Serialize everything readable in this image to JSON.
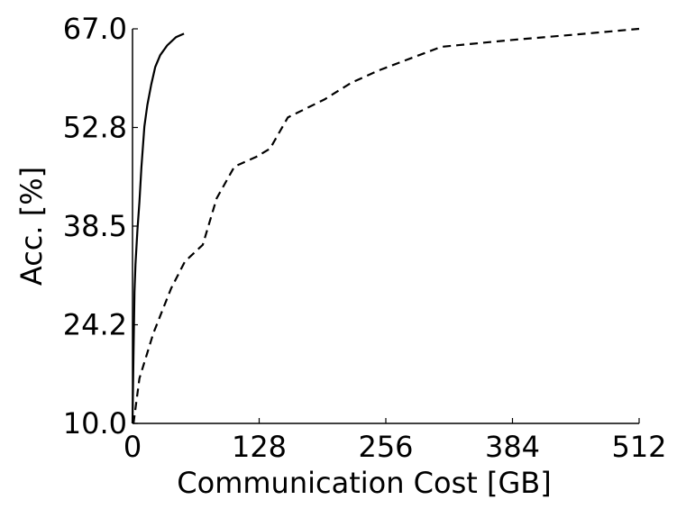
{
  "chart_data": {
    "type": "line",
    "xlabel": "Communication Cost [GB]",
    "ylabel": "Acc. [%]",
    "xlim": [
      0,
      512
    ],
    "xticks": [
      0,
      128,
      256,
      384,
      512
    ],
    "ylim": [
      10,
      67
    ],
    "yticks": [
      {
        "value": 10,
        "label": "10.0"
      },
      {
        "value": 24.25,
        "label": "24.2"
      },
      38.5,
      {
        "value": 52.75,
        "label": "52.8"
      },
      {
        "value": 67,
        "label": "67.0"
      }
    ],
    "series": [
      {
        "color": "#000000",
        "style": "solid",
        "x": [
          0,
          1,
          2,
          3,
          5,
          7,
          9,
          12,
          15,
          19,
          23,
          28,
          35,
          44,
          52
        ],
        "values": [
          10,
          20,
          29,
          33,
          38,
          42,
          47,
          52.9,
          56,
          59,
          61.5,
          63.2,
          64.6,
          65.8,
          66.3
        ]
      },
      {
        "color": "#000000",
        "style": "dashed",
        "x": [
          1,
          7,
          21,
          39,
          53,
          71,
          85,
          103,
          125,
          139,
          157,
          194,
          221,
          249,
          312,
          384,
          450,
          512
        ],
        "values": [
          10,
          16.5,
          23,
          29.5,
          33.4,
          35.8,
          42.5,
          47.1,
          48.5,
          49.7,
          54.2,
          56.8,
          59.2,
          61,
          64.4,
          65.4,
          66.2,
          67
        ]
      }
    ]
  }
}
